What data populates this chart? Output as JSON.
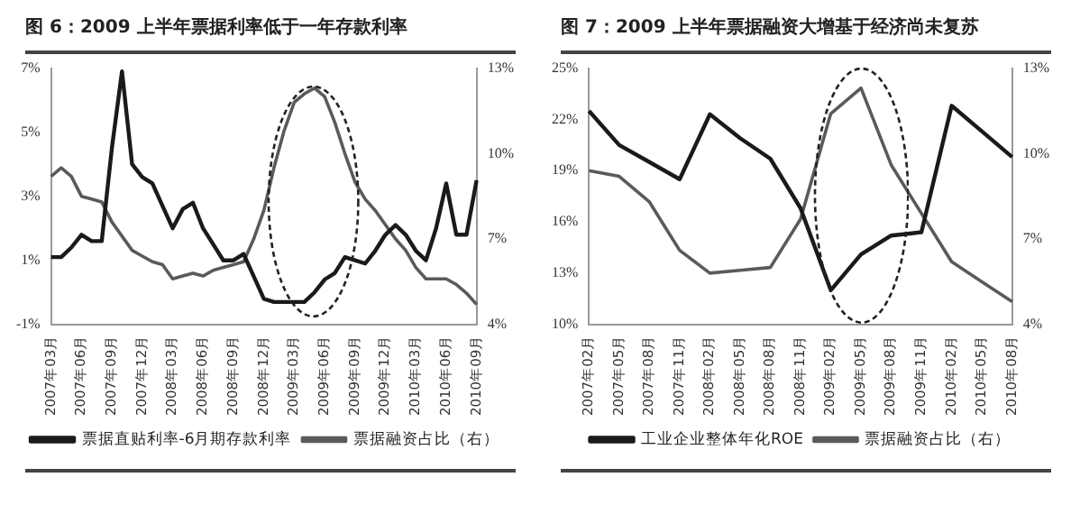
{
  "chart_data": [
    {
      "type": "line",
      "title": "图 6：2009 上半年票据利率低于一年存款利率",
      "categories": [
        "2007年03月",
        null,
        null,
        "2007年06月",
        null,
        null,
        "2007年09月",
        null,
        null,
        "2007年12月",
        null,
        null,
        "2008年03月",
        null,
        null,
        "2008年06月",
        null,
        null,
        "2008年09月",
        null,
        null,
        "2008年12月",
        null,
        null,
        "2009年03月",
        null,
        null,
        "2009年06月",
        null,
        null,
        "2009年09月",
        null,
        null,
        "2009年12月",
        null,
        null,
        "2010年03月",
        null,
        null,
        "2010年06月",
        null,
        null,
        "2010年09月"
      ],
      "series": [
        {
          "name": "票据直贴利率-6月期存款利率",
          "color": "#1a1a1a",
          "values": [
            1.1,
            1.1,
            1.4,
            1.8,
            1.6,
            1.6,
            4.5,
            6.9,
            4.0,
            3.6,
            3.4,
            2.7,
            2.0,
            2.6,
            2.8,
            2.0,
            1.5,
            1.0,
            1.0,
            1.2,
            0.5,
            -0.2,
            -0.3,
            -0.3,
            -0.3,
            -0.3,
            0.0,
            0.4,
            0.6,
            1.1,
            1.0,
            0.9,
            1.3,
            1.8,
            2.1,
            1.8,
            1.3,
            1.0,
            2.0,
            3.4,
            1.8,
            1.8,
            3.5
          ]
        },
        {
          "name": "票据融资占比（右）",
          "color": "#5a5a5a",
          "axis": "y2",
          "values": [
            9.2,
            9.5,
            9.2,
            8.5,
            8.4,
            8.3,
            7.6,
            7.1,
            6.6,
            6.4,
            6.2,
            6.1,
            5.6,
            5.7,
            5.8,
            5.7,
            5.9,
            6.0,
            6.1,
            6.2,
            7.0,
            8.0,
            9.5,
            10.8,
            11.8,
            12.1,
            12.3,
            12.0,
            11.1,
            10.0,
            9.0,
            8.4,
            8.0,
            7.5,
            7.0,
            6.6,
            6.0,
            5.6,
            5.6,
            5.6,
            5.4,
            5.1,
            4.7
          ]
        }
      ],
      "ylim": [
        -1,
        7
      ],
      "yticks": [
        {
          "value": -1,
          "label": "-1%"
        },
        {
          "value": 1,
          "label": "1%"
        },
        {
          "value": 3,
          "label": "3%"
        },
        {
          "value": 5,
          "label": "5%"
        },
        {
          "value": 7,
          "label": "7%"
        }
      ],
      "y2lim": [
        4,
        13
      ],
      "y2ticks": [
        {
          "value": 4,
          "label": "4%"
        },
        {
          "value": 7,
          "label": "7%"
        },
        {
          "value": 10,
          "label": "10%"
        },
        {
          "value": 13,
          "label": "13%"
        }
      ],
      "grid": false,
      "legend": "bottom"
    },
    {
      "type": "line",
      "title": "图 7：2009 上半年票据融资大增基于经济尚未复苏",
      "categories": [
        "2007年02月",
        "2007年05月",
        "2007年08月",
        "2007年11月",
        "2008年02月",
        "2008年05月",
        "2008年08月",
        "2008年11月",
        "2009年02月",
        "2009年05月",
        "2009年08月",
        "2009年11月",
        "2010年02月",
        "2010年05月",
        "2010年08月"
      ],
      "series": [
        {
          "name": "工业企业整体年化ROE",
          "color": "#1a1a1a",
          "values": [
            22.5,
            20.5,
            19.5,
            18.5,
            22.3,
            20.9,
            19.7,
            16.8,
            12.0,
            14.1,
            15.2,
            15.4,
            22.8,
            21.3,
            19.8
          ]
        },
        {
          "name": "票据融资占比（右）",
          "color": "#5a5a5a",
          "axis": "y2",
          "values": [
            9.4,
            9.2,
            8.3,
            6.6,
            5.8,
            5.9,
            6.0,
            7.7,
            11.4,
            12.3,
            9.6,
            7.9,
            6.2,
            5.5,
            4.8
          ]
        }
      ],
      "ylim": [
        10,
        25
      ],
      "yticks": [
        {
          "value": 10,
          "label": "10%"
        },
        {
          "value": 13,
          "label": "13%"
        },
        {
          "value": 16,
          "label": "16%"
        },
        {
          "value": 19,
          "label": "19%"
        },
        {
          "value": 22,
          "label": "22%"
        },
        {
          "value": 25,
          "label": "25%"
        }
      ],
      "y2lim": [
        4,
        13
      ],
      "y2ticks": [
        {
          "value": 4,
          "label": "4%"
        },
        {
          "value": 7,
          "label": "7%"
        },
        {
          "value": 10,
          "label": "10%"
        },
        {
          "value": 13,
          "label": "13%"
        }
      ],
      "grid": false,
      "legend": "bottom"
    }
  ]
}
